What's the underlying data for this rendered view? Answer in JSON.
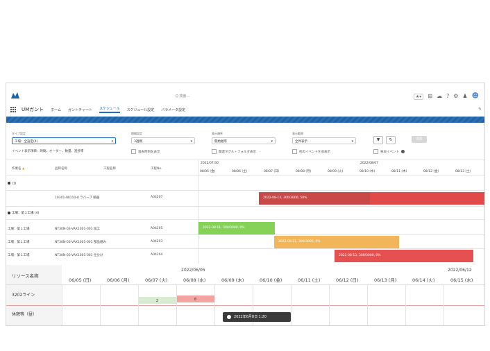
{
  "header": {
    "search_placeholder": "Q 検索...",
    "app_name": "UMガント",
    "nav": [
      "ホーム",
      "ガントチャート",
      "スケジュール",
      "スケジュール設定",
      "パラメータ設定"
    ],
    "active_nav_index": 2
  },
  "filters": {
    "type_label": "タイプ設定",
    "type_value": "工場：全設定(4)",
    "period_label": "期間設定",
    "period_value": "3週間",
    "order_label": "表示順序",
    "order_value": "開始順序",
    "event_label": "表示範囲",
    "event_value": "全件表示",
    "add_button": "追加",
    "event_name_label": "イベント表示項目：時間、オーダー、数量、進捗率",
    "chk_past": "過去時刻を表示",
    "chk_fold": "関連タグル・フォルダ表示",
    "chk_other": "他のイベントを非表示",
    "chk_holiday": "祝日イベント"
  },
  "upper_table": {
    "headers": [
      "作業名",
      "品目名称",
      "工程名称",
      "工程No."
    ],
    "month_left": "2022/07/30",
    "month_right": "2022/08/07",
    "days": [
      "08/05 (金)",
      "08/06 (土)",
      "08/07 (日)",
      "08/08 (月)",
      "08/09 (火)",
      "08/10 (水)",
      "08/11 (木)",
      "08/12 (金)",
      "08/13 (土)"
    ],
    "group1": "(1)",
    "group2": "工場：第１工場 (4)",
    "rows": [
      {
        "col1": "",
        "col2": "10301-00110-0 ラバーブ 腕器",
        "col3": "",
        "col4": "A04207"
      },
      {
        "col1": "工場：第１工場",
        "col2": "NT30N-03-VAX1001-001 加工",
        "col3": "",
        "col4": "A04205"
      },
      {
        "col1": "工場：第１工場",
        "col2": "NT30N-03-VAX1001-001 部品組み",
        "col3": "",
        "col4": "A04203"
      },
      {
        "col1": "工場：第１工場",
        "col2": "NT30N-03-VAX1001-001 仕分け",
        "col3": "",
        "col4": "A04204"
      }
    ],
    "bars": [
      {
        "text": "2022-08-13, 300/3000, 50%",
        "color": "#d94a4a"
      },
      {
        "text": "2022-08-11, 300/3000, 0%",
        "color": "#86d158"
      },
      {
        "text": "2022-08-11, 300/3000, 0%",
        "color": "#f2b65a"
      },
      {
        "text": "2022-08-13, 300/3000, 0%",
        "color": "#e65050"
      }
    ]
  },
  "lower_gantt": {
    "title": "リソース名称",
    "month_left": "2022/06/05",
    "month_right": "2022/06/12",
    "days": [
      "06/05 (日)",
      "06/06 (月)",
      "06/07 (火)",
      "06/08 (水)",
      "06/09 (木)",
      "06/10 (金)",
      "06/11 (土)",
      "06/12 (日)",
      "06/13 (月)",
      "06/14 (火)",
      "06/15 (水)"
    ],
    "rows": [
      "3202ライン",
      "休憩等（昼）"
    ],
    "bar_labels": [
      "2",
      "8"
    ],
    "tooltip": "2022年6月8日 1:20"
  }
}
